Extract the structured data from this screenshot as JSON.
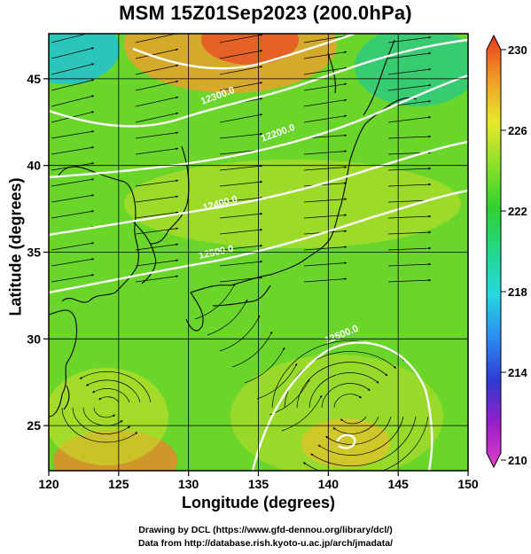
{
  "title": "MSM 15Z01Sep2023 (200.0hPa)",
  "xlabel": "Longitude (degrees)",
  "ylabel": "Latitude  (degrees)",
  "credits": {
    "line1": "Drawing by DCL (https://www.gfd-dennou.org/library/dcl/)",
    "line2": "Data from http://database.rish.kyoto-u.ac.jp/arch/jmadata/"
  },
  "chart_data": {
    "type": "heatmap",
    "variable": "temperature with streamlines and height contours",
    "xlim": [
      120,
      150
    ],
    "ylim": [
      22.4,
      47.6
    ],
    "xticks": [
      120,
      125,
      130,
      135,
      140,
      145,
      150
    ],
    "yticks": [
      25,
      30,
      35,
      40,
      45
    ],
    "colorbar": {
      "range": [
        210,
        230
      ],
      "ticks": [
        210,
        214,
        218,
        222,
        226,
        230
      ],
      "stops": [
        {
          "v": 210,
          "c": "#e040c8"
        },
        {
          "v": 212,
          "c": "#9a1ec8"
        },
        {
          "v": 214,
          "c": "#2f3ad4"
        },
        {
          "v": 216,
          "c": "#2a8cf0"
        },
        {
          "v": 218,
          "c": "#26d8e0"
        },
        {
          "v": 220,
          "c": "#22d88c"
        },
        {
          "v": 222,
          "c": "#2ed22e"
        },
        {
          "v": 224,
          "c": "#8ce02a"
        },
        {
          "v": 226,
          "c": "#e8e82a"
        },
        {
          "v": 228,
          "c": "#f09a26"
        },
        {
          "v": 230,
          "c": "#e83a22"
        }
      ]
    },
    "contour_labels": [
      "12300.0",
      "12200.0",
      "12400.0",
      "12500.0",
      "12500.0"
    ]
  }
}
